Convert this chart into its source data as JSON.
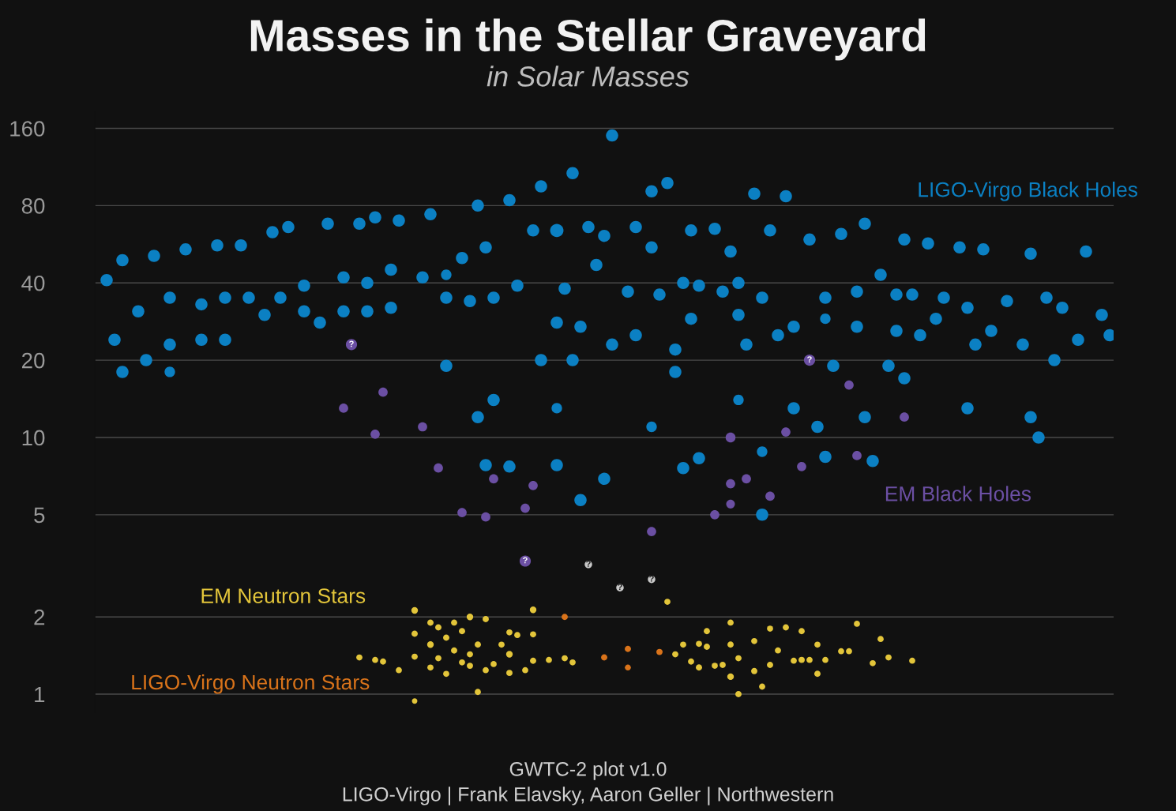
{
  "chart_data": {
    "type": "scatter",
    "title": "Masses in the Stellar Graveyard",
    "subtitle": "in Solar Masses",
    "annotations": [
      "GWTC-2 plot v1.0",
      "LIGO-Virgo | Frank Elavsky, Aaron Geller | Northwestern"
    ],
    "categories": [
      null,
      null,
      null,
      null,
      null,
      null,
      null,
      null,
      null,
      null,
      null,
      null,
      null,
      null,
      null,
      null,
      null,
      null,
      null,
      null,
      null,
      null,
      null,
      null,
      null,
      null,
      null,
      null,
      null,
      null,
      null,
      null,
      null,
      null,
      null,
      null,
      null,
      null,
      null,
      null,
      null,
      null,
      null,
      null,
      null,
      null,
      null,
      null,
      null,
      null,
      null,
      null,
      null,
      null,
      null,
      null,
      null,
      null,
      null,
      null,
      null,
      null,
      null,
      null,
      null,
      null,
      null,
      null,
      null,
      null,
      null,
      null,
      null,
      null,
      null,
      null,
      null,
      null,
      null,
      null,
      null,
      null,
      null,
      null,
      null,
      null,
      null,
      null,
      null,
      null,
      null,
      null,
      null,
      null,
      null,
      null,
      null,
      null,
      null,
      null,
      null,
      null,
      null,
      null,
      null,
      null,
      null,
      null,
      null,
      null,
      null,
      null,
      null,
      null,
      null,
      null,
      null,
      null,
      null,
      null,
      null,
      null,
      null,
      null,
      null,
      null,
      null,
      null,
      null
    ],
    "ylim": [
      0.85,
      185
    ],
    "yticks": [
      1,
      2,
      5,
      10,
      20,
      40,
      80,
      160
    ],
    "log": "y",
    "grid": "y",
    "tick_labels": "y",
    "marker": "circle",
    "series": [
      {
        "name": "LIGO-Virgo Black Holes",
        "color": "#0b80c3",
        "values": [
          null,
          41,
          24,
          18,
          null,
          31,
          20,
          51,
          null,
          23,
          null,
          54,
          null,
          33,
          null,
          56,
          35,
          null,
          56,
          35,
          null,
          30,
          63,
          35,
          66,
          null,
          31,
          null,
          28,
          68,
          null,
          31,
          null,
          68,
          40,
          72,
          null,
          45,
          70,
          null,
          null,
          42,
          74,
          null,
          35,
          null,
          50,
          34,
          12,
          7.8,
          14,
          null,
          84,
          39,
          null,
          64,
          20,
          null,
          7.8,
          38,
          107,
          27,
          66,
          47,
          6.9,
          23,
          null,
          37,
          66,
          null,
          91,
          36,
          98,
          18,
          7.6,
          29,
          39,
          null,
          65,
          37,
          53,
          40,
          23,
          89,
          5.0,
          64,
          25,
          87,
          13,
          null,
          59,
          11,
          8.4,
          19,
          62,
          null,
          27,
          12,
          8.1,
          43,
          19,
          36,
          59,
          36,
          25,
          57,
          29,
          35,
          null,
          55,
          32,
          23,
          54,
          26,
          null,
          34,
          null,
          23,
          12,
          10,
          35,
          20,
          32,
          null,
          24,
          53,
          null,
          30,
          25
        ]
      },
      {
        "color": "#0b80c3",
        "values": [
          null,
          null,
          null,
          49,
          null,
          null,
          null,
          null,
          null,
          35,
          null,
          null,
          null,
          24,
          null,
          null,
          24,
          null,
          null,
          null,
          null,
          null,
          null,
          null,
          null,
          null,
          39,
          null,
          null,
          null,
          null,
          42,
          null,
          null,
          31,
          null,
          null,
          32,
          null,
          null,
          null,
          null,
          null,
          null,
          19,
          null,
          null,
          null,
          80,
          55,
          35,
          null,
          7.7,
          null,
          null,
          null,
          95,
          null,
          28,
          null,
          20,
          5.7,
          null,
          null,
          61,
          150,
          null,
          null,
          25,
          null,
          55,
          null,
          null,
          22,
          40,
          64,
          8.3,
          null,
          null,
          null,
          null,
          30,
          null,
          null,
          35,
          null,
          null,
          null,
          27,
          null,
          null,
          null,
          35,
          null,
          null,
          null,
          37,
          68,
          null,
          null,
          null,
          26,
          17,
          null,
          null,
          null,
          null,
          null,
          null,
          null,
          13,
          null,
          null,
          null,
          null,
          null,
          null,
          null,
          52,
          null,
          null,
          null,
          null,
          null,
          null,
          null,
          null,
          null,
          null
        ]
      },
      {
        "color": "#0b80c3",
        "values": [
          null,
          null,
          null,
          null,
          null,
          null,
          null,
          null,
          null,
          18,
          null,
          null,
          null,
          null,
          null,
          null,
          null,
          null,
          null,
          null,
          null,
          null,
          null,
          null,
          null,
          null,
          null,
          null,
          null,
          null,
          null,
          null,
          null,
          null,
          null,
          null,
          null,
          null,
          null,
          null,
          null,
          null,
          null,
          null,
          43,
          null,
          null,
          null,
          null,
          null,
          null,
          null,
          null,
          null,
          null,
          null,
          null,
          null,
          13,
          null,
          null,
          null,
          null,
          null,
          null,
          null,
          null,
          null,
          null,
          null,
          11,
          null,
          null,
          null,
          null,
          null,
          null,
          null,
          null,
          null,
          null,
          14,
          null,
          null,
          8.8,
          null,
          null,
          null,
          null,
          null,
          null,
          null,
          29,
          null,
          null,
          null,
          null,
          null,
          null,
          null,
          null,
          null,
          null,
          null,
          null,
          null,
          null,
          null,
          null,
          null,
          null,
          null,
          null,
          null,
          null,
          null,
          null,
          null,
          null,
          null,
          null,
          null,
          null,
          null,
          null,
          null,
          null,
          null,
          null
        ]
      },
      {
        "color": "#0b80c3",
        "values": [
          null,
          null,
          null,
          null,
          null,
          null,
          null,
          null,
          null,
          null,
          null,
          null,
          null,
          null,
          null,
          null,
          null,
          null,
          null,
          null,
          null,
          null,
          null,
          null,
          null,
          null,
          null,
          null,
          null,
          null,
          null,
          null,
          null,
          null,
          null,
          null,
          null,
          null,
          null,
          null,
          null,
          null,
          null,
          null,
          null,
          null,
          null,
          null,
          null,
          null,
          null,
          null,
          null,
          null,
          null,
          null,
          null,
          null,
          64,
          null,
          null,
          null,
          null,
          null,
          null,
          null,
          null,
          null,
          null,
          null,
          null,
          null,
          null,
          null,
          null,
          null,
          null,
          null,
          null,
          null,
          null,
          null,
          null,
          null,
          null,
          null,
          null,
          null,
          null,
          null,
          null,
          null,
          null,
          null,
          null,
          null,
          null,
          null,
          null,
          null,
          null,
          null,
          null,
          null,
          null,
          null,
          null,
          null,
          null,
          null,
          null,
          null,
          null,
          null,
          null,
          null,
          null,
          null,
          null,
          null,
          null,
          null,
          null,
          null,
          null,
          null,
          null,
          null,
          null
        ]
      },
      {
        "name": "EM Black Holes",
        "color": "#6b4fa3",
        "values": [
          null,
          null,
          null,
          null,
          null,
          null,
          null,
          null,
          null,
          null,
          null,
          null,
          null,
          null,
          null,
          null,
          null,
          null,
          null,
          null,
          null,
          null,
          null,
          null,
          null,
          null,
          null,
          null,
          null,
          null,
          null,
          13,
          null,
          null,
          null,
          10.3,
          15,
          null,
          null,
          null,
          null,
          11,
          null,
          7.6,
          null,
          null,
          5.1,
          null,
          null,
          4.9,
          6.9,
          null,
          null,
          null,
          5.3,
          6.5,
          null,
          null,
          null,
          null,
          null,
          null,
          null,
          null,
          null,
          null,
          null,
          null,
          null,
          null,
          4.3,
          null,
          null,
          null,
          null,
          null,
          null,
          null,
          5.0,
          null,
          6.6,
          null,
          6.9,
          null,
          null,
          5.9,
          null,
          10.5,
          null,
          7.7,
          null,
          null,
          null,
          null,
          null,
          16,
          8.5,
          null,
          null,
          null,
          null,
          null,
          12,
          null,
          null,
          null,
          null,
          null,
          null,
          null,
          null,
          null,
          null,
          null,
          null,
          null,
          null,
          null,
          null,
          null,
          null,
          null,
          null,
          null,
          null,
          null,
          null,
          null,
          null
        ]
      },
      {
        "color": "#6b4fa3",
        "values": [
          null,
          null,
          null,
          null,
          null,
          null,
          null,
          null,
          null,
          null,
          null,
          null,
          null,
          null,
          null,
          null,
          null,
          null,
          null,
          null,
          null,
          null,
          null,
          null,
          null,
          null,
          null,
          null,
          null,
          null,
          null,
          null,
          null,
          null,
          null,
          null,
          null,
          null,
          null,
          null,
          null,
          null,
          null,
          null,
          null,
          null,
          null,
          null,
          null,
          null,
          null,
          null,
          null,
          null,
          null,
          null,
          null,
          null,
          null,
          null,
          null,
          null,
          null,
          null,
          null,
          null,
          null,
          null,
          null,
          null,
          null,
          null,
          null,
          null,
          null,
          null,
          null,
          null,
          null,
          null,
          10,
          null,
          null,
          null,
          null,
          null,
          null,
          null,
          null,
          null,
          null,
          null,
          null,
          null,
          null,
          null,
          null,
          null,
          null,
          null,
          null,
          null,
          null,
          null,
          null,
          null,
          null,
          null,
          null,
          null,
          null,
          null,
          null,
          null,
          null,
          null,
          null,
          null,
          null,
          null,
          null,
          null,
          null,
          null,
          null,
          null,
          null,
          null,
          null
        ]
      },
      {
        "color": "#6b4fa3",
        "values": [
          null,
          null,
          null,
          null,
          null,
          null,
          null,
          null,
          null,
          null,
          null,
          null,
          null,
          null,
          null,
          null,
          null,
          null,
          null,
          null,
          null,
          null,
          null,
          null,
          null,
          null,
          null,
          null,
          null,
          null,
          null,
          null,
          null,
          null,
          null,
          null,
          null,
          null,
          null,
          null,
          null,
          null,
          null,
          null,
          null,
          null,
          null,
          null,
          null,
          null,
          null,
          null,
          null,
          null,
          null,
          null,
          null,
          null,
          null,
          null,
          null,
          null,
          null,
          null,
          null,
          null,
          null,
          null,
          null,
          null,
          null,
          null,
          null,
          null,
          null,
          null,
          null,
          null,
          null,
          null,
          5.5,
          null,
          null,
          null,
          null,
          null,
          null,
          null,
          null,
          null,
          null,
          null,
          null,
          null,
          null,
          null,
          null,
          null,
          null,
          null,
          null,
          null,
          null,
          null,
          null,
          null,
          null,
          null,
          null,
          null,
          null,
          null,
          null,
          null,
          null,
          null,
          null,
          null,
          null,
          null,
          null,
          null,
          null,
          null,
          null,
          null,
          null,
          null,
          null
        ]
      },
      {
        "color": "#6b4fa3",
        "values": [
          null,
          null,
          null,
          null,
          null,
          null,
          null,
          null,
          null,
          null,
          null,
          null,
          null,
          null,
          null,
          null,
          null,
          null,
          null,
          null,
          null,
          null,
          null,
          null,
          null,
          null,
          null,
          null,
          null,
          null,
          null,
          null,
          23,
          null,
          null,
          null,
          null,
          null,
          null,
          null,
          null,
          null,
          null,
          null,
          null,
          null,
          null,
          null,
          null,
          null,
          null,
          null,
          null,
          null,
          3.3,
          null,
          null,
          null,
          null,
          null,
          null,
          null,
          null,
          null,
          null,
          null,
          null,
          null,
          null,
          null,
          null,
          null,
          null,
          null,
          null,
          null,
          null,
          null,
          null,
          null,
          null,
          null,
          null,
          null,
          null,
          null,
          null,
          null,
          null,
          null,
          20,
          null,
          null,
          null,
          null,
          null,
          null,
          null,
          null,
          null,
          null,
          null,
          null,
          null,
          null,
          null,
          null,
          null,
          null,
          null,
          null,
          null,
          null,
          null,
          null,
          null,
          null,
          null,
          null,
          null,
          null,
          null,
          null,
          null,
          null,
          null,
          null,
          null,
          null
        ],
        "value_labels": [
          null,
          null,
          null,
          null,
          null,
          null,
          null,
          null,
          null,
          null,
          null,
          null,
          null,
          null,
          null,
          null,
          null,
          null,
          null,
          null,
          null,
          null,
          null,
          null,
          null,
          null,
          null,
          null,
          null,
          null,
          null,
          null,
          "?",
          null,
          null,
          null,
          null,
          null,
          null,
          null,
          null,
          null,
          null,
          null,
          null,
          null,
          null,
          null,
          null,
          null,
          null,
          null,
          null,
          null,
          "?",
          null,
          null,
          null,
          null,
          null,
          null,
          null,
          null,
          null,
          null,
          null,
          null,
          null,
          null,
          null,
          null,
          null,
          null,
          null,
          null,
          null,
          null,
          null,
          null,
          null,
          null,
          null,
          null,
          null,
          null,
          null,
          null,
          null,
          null,
          null,
          "?",
          null,
          null,
          null,
          null,
          null,
          null,
          null,
          null,
          null,
          null,
          null,
          null,
          null,
          null,
          null,
          null,
          null,
          null,
          null,
          null,
          null,
          null,
          null,
          null,
          null,
          null,
          null,
          null,
          null,
          null,
          null,
          null,
          null,
          null,
          null,
          null,
          null,
          null
        ]
      },
      {
        "color": "#c9c9c9",
        "values": [
          null,
          null,
          null,
          null,
          null,
          null,
          null,
          null,
          null,
          null,
          null,
          null,
          null,
          null,
          null,
          null,
          null,
          null,
          null,
          null,
          null,
          null,
          null,
          null,
          null,
          null,
          null,
          null,
          null,
          null,
          null,
          null,
          null,
          null,
          null,
          null,
          null,
          null,
          null,
          null,
          null,
          null,
          null,
          null,
          null,
          null,
          null,
          null,
          null,
          null,
          null,
          null,
          null,
          null,
          null,
          null,
          null,
          null,
          null,
          null,
          null,
          null,
          3.2,
          null,
          null,
          null,
          2.6,
          null,
          null,
          null,
          2.8,
          null,
          null,
          null,
          null,
          null,
          null,
          null,
          null,
          null,
          null,
          null,
          null,
          null,
          null,
          null,
          null,
          null,
          null,
          null,
          null,
          null,
          null,
          null,
          null,
          null,
          null,
          null,
          null,
          null,
          null,
          null,
          null,
          null,
          null,
          null,
          null,
          null,
          null,
          null,
          null,
          null,
          null,
          null,
          null,
          null,
          null,
          null,
          null,
          null,
          null,
          null,
          null,
          null,
          null,
          null,
          null,
          null,
          null
        ],
        "value_labels": [
          null,
          null,
          null,
          null,
          null,
          null,
          null,
          null,
          null,
          null,
          null,
          null,
          null,
          null,
          null,
          null,
          null,
          null,
          null,
          null,
          null,
          null,
          null,
          null,
          null,
          null,
          null,
          null,
          null,
          null,
          null,
          null,
          null,
          null,
          null,
          null,
          null,
          null,
          null,
          null,
          null,
          null,
          null,
          null,
          null,
          null,
          null,
          null,
          null,
          null,
          null,
          null,
          null,
          null,
          null,
          null,
          null,
          null,
          null,
          null,
          null,
          null,
          "?",
          null,
          null,
          null,
          "?",
          null,
          null,
          null,
          "?",
          null,
          null,
          null,
          null,
          null,
          null,
          null,
          null,
          null,
          null,
          null,
          null,
          null,
          null,
          null,
          null,
          null,
          null,
          null,
          null,
          null,
          null,
          null,
          null,
          null,
          null,
          null,
          null,
          null,
          null,
          null,
          null,
          null,
          null,
          null,
          null,
          null,
          null,
          null,
          null,
          null,
          null,
          null,
          null,
          null,
          null,
          null,
          null,
          null,
          null,
          null,
          null,
          null,
          null,
          null,
          null,
          null,
          null
        ]
      },
      {
        "name": "EM Neutron Stars",
        "color": "#e3c53a",
        "values": [
          null,
          null,
          null,
          null,
          null,
          null,
          null,
          null,
          null,
          null,
          null,
          null,
          null,
          null,
          null,
          null,
          null,
          null,
          null,
          null,
          null,
          null,
          null,
          null,
          null,
          null,
          null,
          null,
          null,
          null,
          null,
          null,
          null,
          1.39,
          null,
          1.36,
          1.34,
          null,
          1.24,
          null,
          1.4,
          null,
          1.27,
          1.38,
          1.2,
          1.9,
          1.33,
          1.43,
          1.02,
          1.24,
          1.31,
          1.56,
          1.74,
          1.7,
          1.24,
          1.71,
          null,
          1.36,
          null,
          1.38,
          1.33,
          null,
          null,
          null,
          null,
          null,
          null,
          null,
          null,
          null,
          null,
          null,
          2.29,
          1.43,
          1.56,
          1.34,
          1.57,
          1.76,
          1.29,
          1.3,
          1.9,
          1.38,
          null,
          1.61,
          1.07,
          1.8,
          1.48,
          1.82,
          1.35,
          1.76,
          1.36,
          1.56,
          1.36,
          null,
          1.47,
          1.47,
          1.88,
          null,
          1.32,
          1.64,
          1.39,
          null,
          null,
          1.35,
          null,
          null,
          null,
          null,
          null,
          null,
          null,
          null,
          null,
          null,
          null,
          null,
          null,
          null,
          null,
          null,
          null,
          null,
          null,
          null,
          null,
          null,
          null,
          null,
          null
        ]
      },
      {
        "color": "#e3c53a",
        "values": [
          null,
          null,
          null,
          null,
          null,
          null,
          null,
          null,
          null,
          null,
          null,
          null,
          null,
          null,
          null,
          null,
          null,
          null,
          null,
          null,
          null,
          null,
          null,
          null,
          null,
          null,
          null,
          null,
          null,
          null,
          null,
          null,
          null,
          null,
          null,
          null,
          null,
          null,
          null,
          null,
          1.72,
          null,
          1.9,
          1.82,
          1.66,
          1.48,
          1.76,
          1.29,
          1.56,
          1.96,
          null,
          null,
          1.21,
          null,
          null,
          1.35,
          null,
          null,
          null,
          null,
          null,
          null,
          null,
          null,
          null,
          null,
          null,
          null,
          null,
          null,
          null,
          null,
          null,
          null,
          null,
          null,
          1.27,
          1.53,
          null,
          null,
          1.56,
          1.0,
          null,
          1.23,
          null,
          1.3,
          null,
          null,
          null,
          1.36,
          null,
          1.2,
          null,
          null,
          null,
          null,
          null,
          null,
          null,
          null,
          null,
          null,
          null,
          null,
          null,
          null,
          null,
          null,
          null,
          null,
          null,
          null,
          null,
          null,
          null,
          null,
          null,
          null,
          null,
          null,
          null,
          null,
          null,
          null,
          null,
          null,
          null,
          null,
          null
        ]
      },
      {
        "color": "#e3c53a",
        "values": [
          null,
          null,
          null,
          null,
          null,
          null,
          null,
          null,
          null,
          null,
          null,
          null,
          null,
          null,
          null,
          null,
          null,
          null,
          null,
          null,
          null,
          null,
          null,
          null,
          null,
          null,
          null,
          null,
          null,
          null,
          null,
          null,
          null,
          null,
          null,
          null,
          null,
          null,
          null,
          null,
          2.12,
          null,
          1.56,
          null,
          null,
          null,
          null,
          2.0,
          null,
          null,
          null,
          null,
          1.43,
          null,
          null,
          2.13,
          null,
          null,
          null,
          null,
          null,
          null,
          null,
          null,
          null,
          null,
          null,
          null,
          null,
          null,
          null,
          null,
          null,
          null,
          null,
          null,
          null,
          null,
          null,
          null,
          1.17,
          null,
          null,
          null,
          null,
          null,
          null,
          null,
          null,
          null,
          null,
          null,
          null,
          null,
          null,
          null,
          null,
          null,
          null,
          null,
          null,
          null,
          null,
          null,
          null,
          null,
          null,
          null,
          null,
          null,
          null,
          null,
          null,
          null,
          null,
          null,
          null,
          null,
          null,
          null,
          null,
          null,
          null,
          null,
          null,
          null,
          null,
          null,
          null
        ]
      },
      {
        "color": "#e3c53a",
        "values": [
          null,
          null,
          null,
          null,
          null,
          null,
          null,
          null,
          null,
          null,
          null,
          null,
          null,
          null,
          null,
          null,
          null,
          null,
          null,
          null,
          null,
          null,
          null,
          null,
          null,
          null,
          null,
          null,
          null,
          null,
          null,
          null,
          null,
          null,
          null,
          null,
          null,
          null,
          null,
          null,
          0.94,
          null,
          null,
          null,
          null,
          null,
          null,
          null,
          null,
          null,
          null,
          null,
          null,
          null,
          null,
          null,
          null,
          null,
          null,
          null,
          null,
          null,
          null,
          null,
          null,
          null,
          null,
          null,
          null,
          null,
          null,
          null,
          null,
          null,
          null,
          null,
          null,
          null,
          null,
          null,
          null,
          null,
          null,
          null,
          null,
          null,
          null,
          null,
          null,
          null,
          null,
          null,
          null,
          null,
          null,
          null,
          null,
          null,
          null,
          null,
          null,
          null,
          null,
          null,
          null,
          null,
          null,
          null,
          null,
          null,
          null,
          null,
          null,
          null,
          null,
          null,
          null,
          null,
          null,
          null,
          null,
          null,
          null,
          null,
          null,
          null,
          null,
          null,
          null
        ]
      },
      {
        "name": "LIGO-Virgo Neutron Stars",
        "color": "#d9731a",
        "values": [
          null,
          null,
          null,
          null,
          null,
          null,
          null,
          null,
          null,
          null,
          null,
          null,
          null,
          null,
          null,
          null,
          null,
          null,
          null,
          null,
          null,
          null,
          null,
          null,
          null,
          null,
          null,
          null,
          null,
          null,
          null,
          null,
          null,
          null,
          null,
          null,
          null,
          null,
          null,
          null,
          null,
          null,
          null,
          null,
          null,
          null,
          null,
          null,
          null,
          null,
          null,
          null,
          null,
          null,
          null,
          null,
          null,
          null,
          null,
          2.0,
          null,
          null,
          null,
          null,
          1.39,
          null,
          null,
          1.5,
          null,
          null,
          null,
          1.46,
          null,
          null,
          null,
          null,
          null,
          null,
          null,
          null,
          null,
          null,
          null,
          null,
          null,
          null,
          null,
          null,
          null,
          null,
          null,
          null,
          null,
          null,
          null,
          null,
          null,
          null,
          null,
          null,
          null,
          null,
          null,
          null,
          null,
          null,
          null,
          null,
          null,
          null,
          null,
          null,
          null,
          null,
          null,
          null,
          null,
          null,
          null,
          null,
          null,
          null,
          null,
          null,
          null,
          null,
          null,
          null,
          null
        ]
      },
      {
        "color": "#d9731a",
        "values": [
          null,
          null,
          null,
          null,
          null,
          null,
          null,
          null,
          null,
          null,
          null,
          null,
          null,
          null,
          null,
          null,
          null,
          null,
          null,
          null,
          null,
          null,
          null,
          null,
          null,
          null,
          null,
          null,
          null,
          null,
          null,
          null,
          null,
          null,
          null,
          null,
          null,
          null,
          null,
          null,
          null,
          null,
          null,
          null,
          null,
          null,
          null,
          null,
          null,
          null,
          null,
          null,
          null,
          null,
          null,
          null,
          null,
          null,
          null,
          null,
          null,
          null,
          null,
          null,
          null,
          null,
          null,
          1.27,
          null,
          null,
          null,
          null,
          null,
          null,
          null,
          null,
          null,
          null,
          null,
          null,
          null,
          null,
          null,
          null,
          null,
          null,
          null,
          null,
          null,
          null,
          null,
          null,
          null,
          null,
          null,
          null,
          null,
          null,
          null,
          null,
          null,
          null,
          null,
          null,
          null,
          null,
          null,
          null,
          null,
          null,
          null,
          null,
          null,
          null,
          null,
          null,
          null,
          null,
          null,
          null,
          null,
          null,
          null,
          null,
          null,
          null,
          null,
          null,
          null
        ]
      }
    ]
  }
}
